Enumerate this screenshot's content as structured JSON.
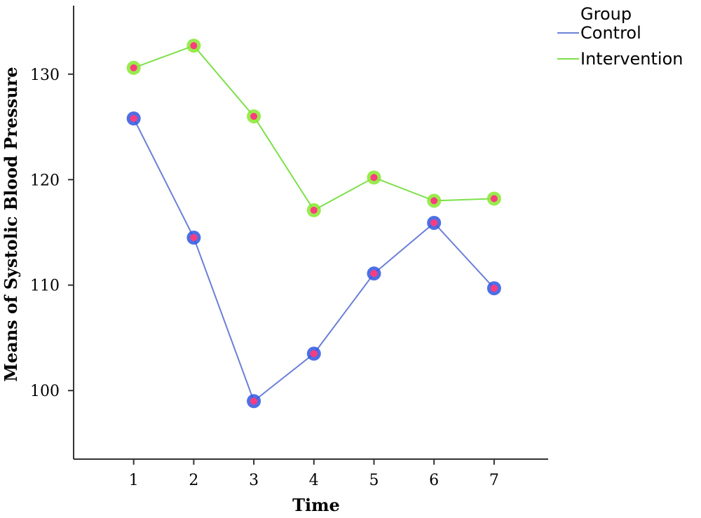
{
  "chart_data": {
    "type": "line",
    "title": "",
    "xlabel": "Time",
    "ylabel": "Means of Systolic Blood Pressure",
    "categories": [
      "1",
      "2",
      "3",
      "4",
      "5",
      "6",
      "7"
    ],
    "x": [
      1,
      2,
      3,
      4,
      5,
      6,
      7
    ],
    "yticks": [
      100,
      110,
      120,
      130
    ],
    "ylim": [
      93.5,
      136.5
    ],
    "xlim": [
      0,
      7.9
    ],
    "grid": false,
    "legend": {
      "title": "Group",
      "placement": "top-right"
    },
    "series": [
      {
        "name": "Control",
        "color": "#6b7fd7",
        "marker_ring": "#2f56e0",
        "marker_fill": "#ff3b7f",
        "values": [
          125.8,
          114.5,
          99.0,
          103.5,
          111.1,
          115.9,
          109.7
        ]
      },
      {
        "name": "Intervention",
        "color": "#7de04a",
        "marker_ring": "#86e82e",
        "marker_fill": "#ff3b7f",
        "values": [
          130.6,
          132.7,
          126.0,
          117.1,
          120.2,
          118.0,
          118.2
        ]
      }
    ]
  }
}
